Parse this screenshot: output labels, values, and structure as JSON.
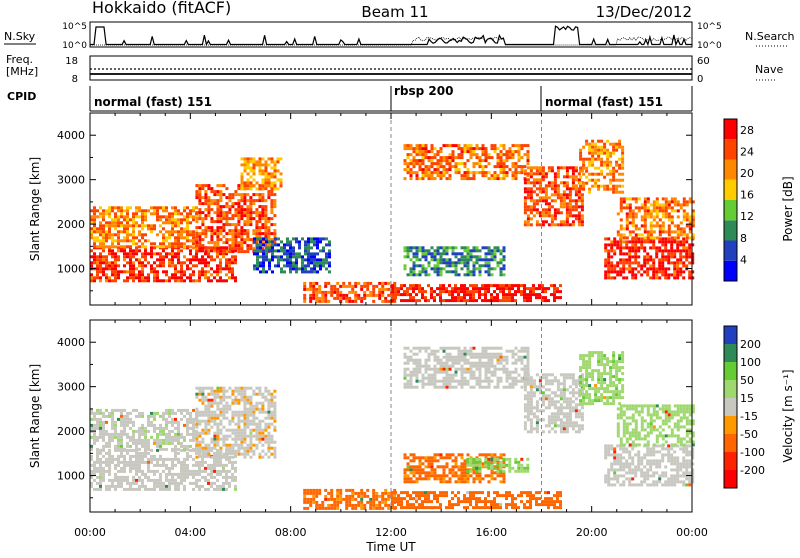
{
  "header": {
    "station": "Hokkaido (fitACF)",
    "beam": "Beam 11",
    "date": "13/Dec/2012"
  },
  "top_panels": {
    "nsky_label": "N.Sky",
    "nsky_ticks": [
      "10^5",
      "10^0"
    ],
    "nsearch_label": "N.Search",
    "nsearch_ticks": [
      "10^5",
      "10^0"
    ],
    "freq_label": [
      "Freq.",
      "[MHz]"
    ],
    "freq_ticks": [
      "18",
      "8"
    ],
    "nave_label": "Nave",
    "nave_ticks": [
      "60",
      "0"
    ],
    "cpid_label": "CPID",
    "cpid_segments": [
      {
        "name": "normal (fast) 151",
        "start_hr": 0,
        "end_hr": 12
      },
      {
        "name": "rbsp 200",
        "start_hr": 12,
        "end_hr": 18
      },
      {
        "name": "normal (fast) 151",
        "start_hr": 18,
        "end_hr": 24
      }
    ]
  },
  "chart_data": [
    {
      "type": "heatmap",
      "name": "power",
      "xlabel": "Time UT",
      "ylabel": "Slant Range [km]",
      "x_ticks": [
        "00:00",
        "04:00",
        "08:00",
        "12:00",
        "16:00",
        "20:00",
        "00:00"
      ],
      "xlim_hours": [
        0,
        24
      ],
      "y_ticks": [
        1000,
        2000,
        3000,
        4000
      ],
      "ylim": [
        180,
        4500
      ],
      "colorbar_label": "Power [dB]",
      "colorbar_ticks": [
        4,
        8,
        12,
        16,
        20,
        24,
        28
      ],
      "colorbar_range": [
        0,
        30
      ],
      "colors": [
        "#0000ff",
        "#2040c0",
        "#2e8b57",
        "#66cc33",
        "#ffcc00",
        "#ff8800",
        "#ff4400",
        "#ff0000"
      ],
      "regions": [
        {
          "t0": 0.0,
          "t1": 5.8,
          "r0": 700,
          "r1": 1500,
          "value": 26
        },
        {
          "t0": 0.0,
          "t1": 4.2,
          "r0": 1500,
          "r1": 2400,
          "value": 21
        },
        {
          "t0": 4.2,
          "t1": 7.4,
          "r0": 1400,
          "r1": 2900,
          "value": 24
        },
        {
          "t0": 6.0,
          "t1": 7.6,
          "r0": 2800,
          "r1": 3500,
          "value": 20
        },
        {
          "t0": 6.5,
          "t1": 9.6,
          "r0": 900,
          "r1": 1700,
          "value": 6
        },
        {
          "t0": 8.5,
          "t1": 12.2,
          "r0": 250,
          "r1": 700,
          "value": 24
        },
        {
          "t0": 12.0,
          "t1": 18.8,
          "r0": 250,
          "r1": 650,
          "value": 28
        },
        {
          "t0": 12.5,
          "t1": 16.5,
          "r0": 850,
          "r1": 1500,
          "value": 9
        },
        {
          "t0": 12.5,
          "t1": 17.5,
          "r0": 3000,
          "r1": 3800,
          "value": 22
        },
        {
          "t0": 17.3,
          "t1": 19.6,
          "r0": 2000,
          "r1": 3300,
          "value": 24
        },
        {
          "t0": 19.5,
          "t1": 21.2,
          "r0": 2700,
          "r1": 3900,
          "value": 21
        },
        {
          "t0": 20.5,
          "t1": 24.0,
          "r0": 800,
          "r1": 1700,
          "value": 27
        },
        {
          "t0": 21.0,
          "t1": 24.0,
          "r0": 1700,
          "r1": 2600,
          "value": 22
        }
      ]
    },
    {
      "type": "heatmap",
      "name": "velocity",
      "xlabel": "Time UT",
      "ylabel": "Slant Range [km]",
      "x_ticks": [
        "00:00",
        "04:00",
        "08:00",
        "12:00",
        "16:00",
        "20:00",
        "00:00"
      ],
      "xlim_hours": [
        0,
        24
      ],
      "y_ticks": [
        1000,
        2000,
        3000,
        4000
      ],
      "ylim": [
        180,
        4500
      ],
      "colorbar_label": "Velocity [m s⁻¹]",
      "colorbar_ticks": [
        200,
        100,
        50,
        15,
        -15,
        -50,
        -100,
        -200
      ],
      "colors": [
        "#2040c0",
        "#2e8b57",
        "#66cc33",
        "#a0d870",
        "#c8c8c0",
        "#ff9900",
        "#ff6600",
        "#ff2200",
        "#ff0000"
      ],
      "regions": [
        {
          "t0": 0.0,
          "t1": 5.8,
          "r0": 700,
          "r1": 1600,
          "value": 0
        },
        {
          "t0": 0.0,
          "t1": 4.2,
          "r0": 1600,
          "r1": 2500,
          "value": 5
        },
        {
          "t0": 4.2,
          "t1": 7.4,
          "r0": 1400,
          "r1": 3000,
          "value": -5
        },
        {
          "t0": 8.5,
          "t1": 12.2,
          "r0": 250,
          "r1": 700,
          "value": -60
        },
        {
          "t0": 12.0,
          "t1": 18.8,
          "r0": 250,
          "r1": 650,
          "value": -70
        },
        {
          "t0": 12.5,
          "t1": 16.5,
          "r0": 850,
          "r1": 1500,
          "value": -60
        },
        {
          "t0": 15.0,
          "t1": 17.5,
          "r0": 1100,
          "r1": 1400,
          "value": 45
        },
        {
          "t0": 12.5,
          "t1": 17.5,
          "r0": 3000,
          "r1": 3900,
          "value": 0
        },
        {
          "t0": 17.3,
          "t1": 19.6,
          "r0": 2000,
          "r1": 3300,
          "value": 0
        },
        {
          "t0": 19.5,
          "t1": 21.2,
          "r0": 2600,
          "r1": 3800,
          "value": 40
        },
        {
          "t0": 20.5,
          "t1": 24.0,
          "r0": 800,
          "r1": 1700,
          "value": 0
        },
        {
          "t0": 21.0,
          "t1": 24.0,
          "r0": 1700,
          "r1": 2600,
          "value": 35
        }
      ]
    }
  ]
}
